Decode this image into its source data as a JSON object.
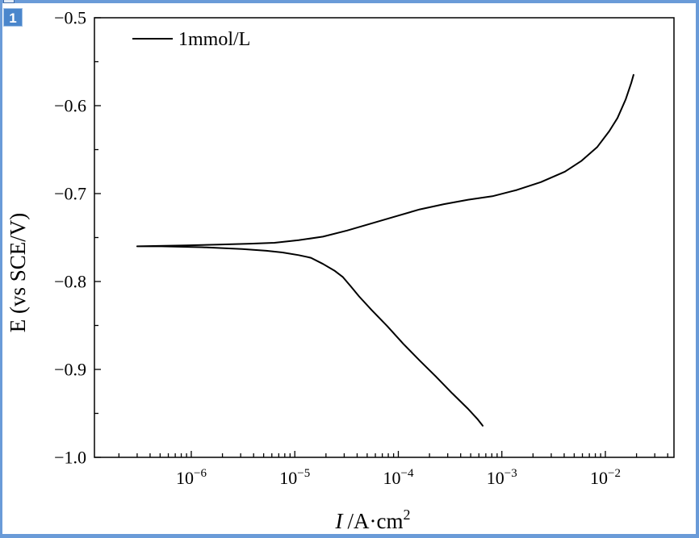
{
  "window": {
    "layer_label": "1",
    "frame_color": "#6a9bd8",
    "badge_color": "#4a86cc",
    "title_strip_icon": "graph-window-icon"
  },
  "chart_data": {
    "type": "line",
    "x_scale": "log",
    "y_scale": "linear",
    "xlim": [
      1.16e-07,
      0.046
    ],
    "ylim": [
      -1.0,
      -0.5
    ],
    "xlabel": {
      "symbol": "I",
      "unit": "/A·cm",
      "exponent": "2"
    },
    "ylabel": "E (vs SCE/V)",
    "xticks": [
      {
        "value": 1e-06,
        "base": "10",
        "exp": "−6"
      },
      {
        "value": 1e-05,
        "base": "10",
        "exp": "−5"
      },
      {
        "value": 0.0001,
        "base": "10",
        "exp": "−4"
      },
      {
        "value": 0.001,
        "base": "10",
        "exp": "−3"
      },
      {
        "value": 0.01,
        "base": "10",
        "exp": "−2"
      }
    ],
    "yticks": [
      {
        "value": -0.5,
        "label": "−0.5"
      },
      {
        "value": -0.6,
        "label": "−0.6"
      },
      {
        "value": -0.7,
        "label": "−0.7"
      },
      {
        "value": -0.8,
        "label": "−0.8"
      },
      {
        "value": -0.9,
        "label": "−0.9"
      },
      {
        "value": -1.0,
        "label": "−1.0"
      }
    ],
    "y_minor_step": 0.05,
    "grid": false,
    "legend": {
      "placement": "top-left"
    },
    "series": [
      {
        "name": "1mmol/L",
        "color": "#000000",
        "x": [
          0.000653,
          0.000586,
          0.000473,
          0.00033,
          0.00023,
          0.000161,
          0.000112,
          7.85e-05,
          5.48e-05,
          4.18e-05,
          3.5e-05,
          2.92e-05,
          2.44e-05,
          1.87e-05,
          1.43e-05,
          1.09e-05,
          7.61e-06,
          5.31e-06,
          3.1e-06,
          1.26e-06,
          5.15e-07,
          3e-07,
          8.82e-07,
          1.81e-06,
          3.71e-06,
          6.36e-06,
          1.09e-05,
          1.87e-05,
          3.2e-05,
          5.48e-05,
          9.39e-05,
          0.000161,
          0.000276,
          0.000473,
          0.00081,
          0.00139,
          0.00238,
          0.00407,
          0.00584,
          0.00836,
          0.0109,
          0.0131,
          0.0157,
          0.0178,
          0.0187
        ],
        "y": [
          -0.964,
          -0.957,
          -0.945,
          -0.927,
          -0.908,
          -0.89,
          -0.871,
          -0.851,
          -0.832,
          -0.817,
          -0.806,
          -0.795,
          -0.788,
          -0.78,
          -0.773,
          -0.77,
          -0.767,
          -0.765,
          -0.763,
          -0.761,
          -0.76,
          -0.76,
          -0.759,
          -0.758,
          -0.757,
          -0.756,
          -0.753,
          -0.749,
          -0.742,
          -0.734,
          -0.726,
          -0.718,
          -0.712,
          -0.707,
          -0.703,
          -0.696,
          -0.687,
          -0.675,
          -0.663,
          -0.647,
          -0.629,
          -0.614,
          -0.593,
          -0.574,
          -0.565
        ]
      }
    ]
  }
}
